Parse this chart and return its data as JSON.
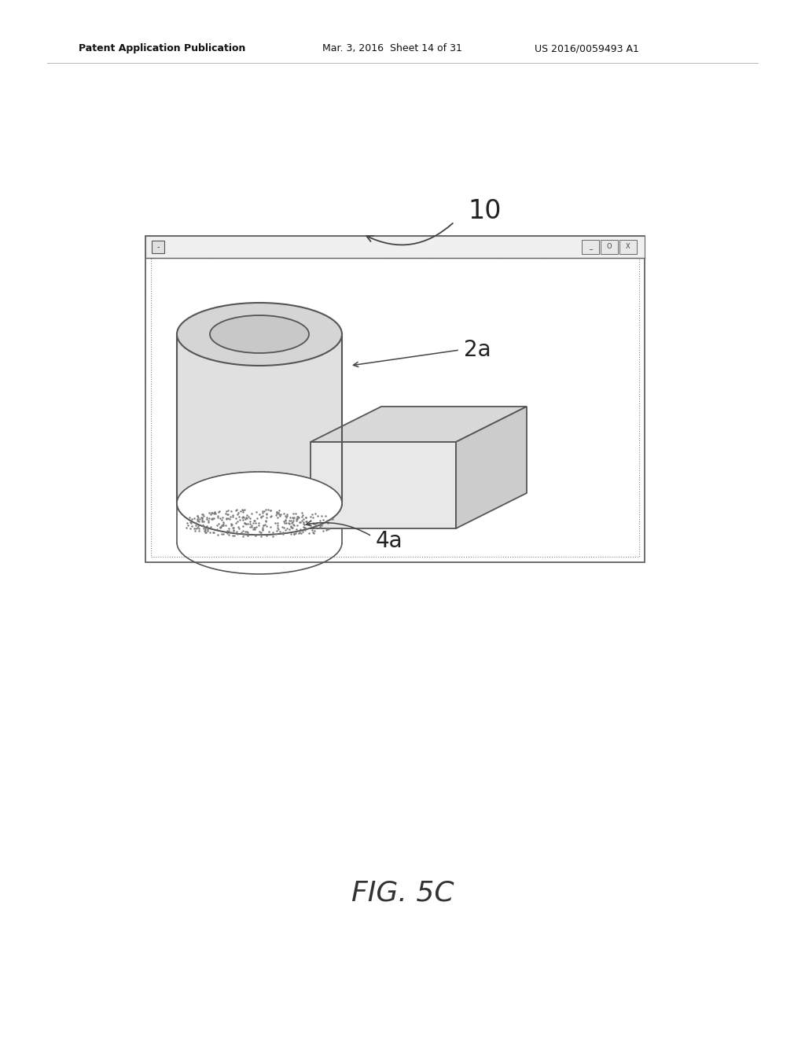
{
  "bg_color": "#ffffff",
  "title_left": "Patent Application Publication",
  "title_mid": "Mar. 3, 2016  Sheet 14 of 31",
  "title_right": "US 2016/0059493 A1",
  "fig_label": "FIG. 5C",
  "label_10": "10",
  "label_2a": "2a",
  "label_4a": "4a",
  "line_color": "#555555",
  "window_solid_color": "#666666",
  "window_dash_color": "#999999",
  "cyl_face_color": "#e0e0e0",
  "cyl_top_color": "#d5d5d5",
  "cyl_hole_color": "#c8c8c8",
  "box_front_color": "#e8e8e8",
  "box_top_color": "#d8d8d8",
  "box_right_color": "#cccccc",
  "stipple_dot_color": "#777777"
}
